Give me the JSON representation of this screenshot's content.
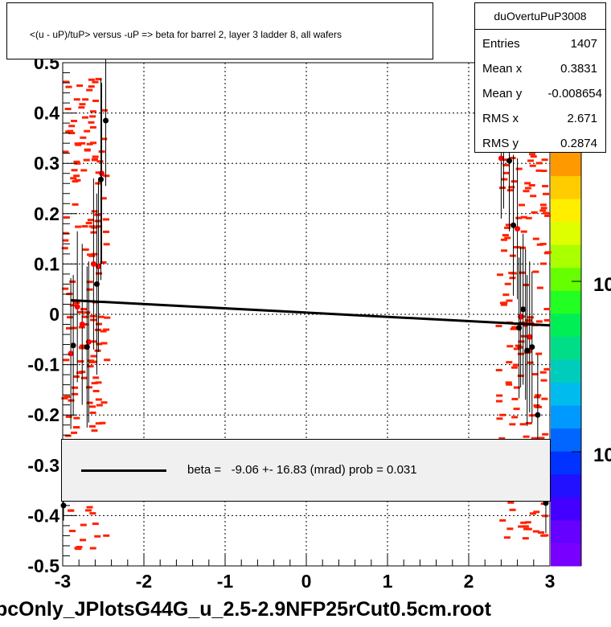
{
  "title": "<(u - uP)/tuP> versus  -uP => beta for barrel 2, layer 3 ladder 8, all wafers",
  "stats": {
    "name": "duOvertuPuP3008",
    "rows": [
      {
        "label": "Entries",
        "value": "1407"
      },
      {
        "label": "Mean x",
        "value": "0.3831"
      },
      {
        "label": "Mean y",
        "value": "-0.008654"
      },
      {
        "label": "RMS x",
        "value": "2.671"
      },
      {
        "label": "RMS y",
        "value": "0.2874"
      }
    ]
  },
  "legend": {
    "text": "beta =   -9.06 +- 16.83 (mrad) prob = 0.031"
  },
  "file_label": "pcOnly_JPlotsG44G_u_2.5-2.9NFP25rCut0.5cm.root",
  "colorbar": {
    "tick_labels": [
      "10",
      "10"
    ],
    "colors": [
      "#7700ff",
      "#6600ff",
      "#4400ff",
      "#2211ff",
      "#0033ff",
      "#0066ff",
      "#0099ff",
      "#00bbee",
      "#00ccbb",
      "#00dd88",
      "#00ee55",
      "#22ff22",
      "#66ff00",
      "#aaff00",
      "#ddff00",
      "#ffee00",
      "#ffcc00",
      "#ff9900"
    ]
  },
  "chart_data": {
    "type": "scatter",
    "title": "<(u - uP)/tuP> versus  -uP => beta for barrel 2, layer 3 ladder 8, all wafers",
    "xlabel": "",
    "ylabel": "",
    "xlim": [
      -3,
      3
    ],
    "ylim": [
      -0.5,
      0.5
    ],
    "xticks": [
      "-3",
      "-2",
      "-1",
      "0",
      "1",
      "2",
      "3"
    ],
    "yticks": [
      "-0.5",
      "-0.4",
      "-0.3",
      "-0.2",
      "-0.1",
      "0",
      "0.1",
      "0.2",
      "0.3",
      "0.4",
      "0.5"
    ],
    "grid": true,
    "fit_line": {
      "x": [
        -2.9,
        3.0
      ],
      "y": [
        0.028,
        -0.022
      ]
    },
    "profile_black": [
      {
        "x": -2.99,
        "y": -0.38,
        "err": 0.03
      },
      {
        "x": -2.87,
        "y": -0.062,
        "err": 0.14
      },
      {
        "x": -2.7,
        "y": -0.065,
        "err": 0.16
      },
      {
        "x": -2.58,
        "y": 0.06,
        "err": 0.18
      },
      {
        "x": -2.53,
        "y": 0.268,
        "err": 0.2
      },
      {
        "x": -2.47,
        "y": 0.385,
        "err": 0.13
      },
      {
        "x": 2.38,
        "y": 0.445,
        "err": 0.12
      },
      {
        "x": 2.43,
        "y": 0.33,
        "err": 0.12
      },
      {
        "x": 2.5,
        "y": 0.305,
        "err": 0.14
      },
      {
        "x": 2.55,
        "y": 0.177,
        "err": 0.14
      },
      {
        "x": 2.62,
        "y": -0.027,
        "err": 0.14
      },
      {
        "x": 2.67,
        "y": 0.01,
        "err": 0.15
      },
      {
        "x": 2.72,
        "y": -0.072,
        "err": 0.15
      },
      {
        "x": 2.78,
        "y": -0.065,
        "err": 0.15
      },
      {
        "x": 2.85,
        "y": -0.2,
        "err": 0.12
      },
      {
        "x": 2.95,
        "y": -0.375,
        "err": 0.06
      }
    ],
    "profile_red": [
      {
        "x": -2.9,
        "y": -0.078,
        "err": 0.15
      },
      {
        "x": -2.82,
        "y": 0.015,
        "err": 0.15
      },
      {
        "x": -2.76,
        "y": -0.02,
        "err": 0.16
      },
      {
        "x": -2.68,
        "y": -0.055,
        "err": 0.16
      },
      {
        "x": -2.62,
        "y": 0.1,
        "err": 0.17
      },
      {
        "x": -2.56,
        "y": 0.095,
        "err": 0.17
      },
      {
        "x": -2.52,
        "y": 0.28,
        "err": 0.18
      },
      {
        "x": 2.4,
        "y": 0.31,
        "err": 0.12
      },
      {
        "x": 2.6,
        "y": 0.17,
        "err": 0.14
      },
      {
        "x": 2.64,
        "y": -0.005,
        "err": 0.14
      },
      {
        "x": 2.7,
        "y": -0.02,
        "err": 0.15
      },
      {
        "x": 2.75,
        "y": -0.045,
        "err": 0.15
      }
    ]
  }
}
